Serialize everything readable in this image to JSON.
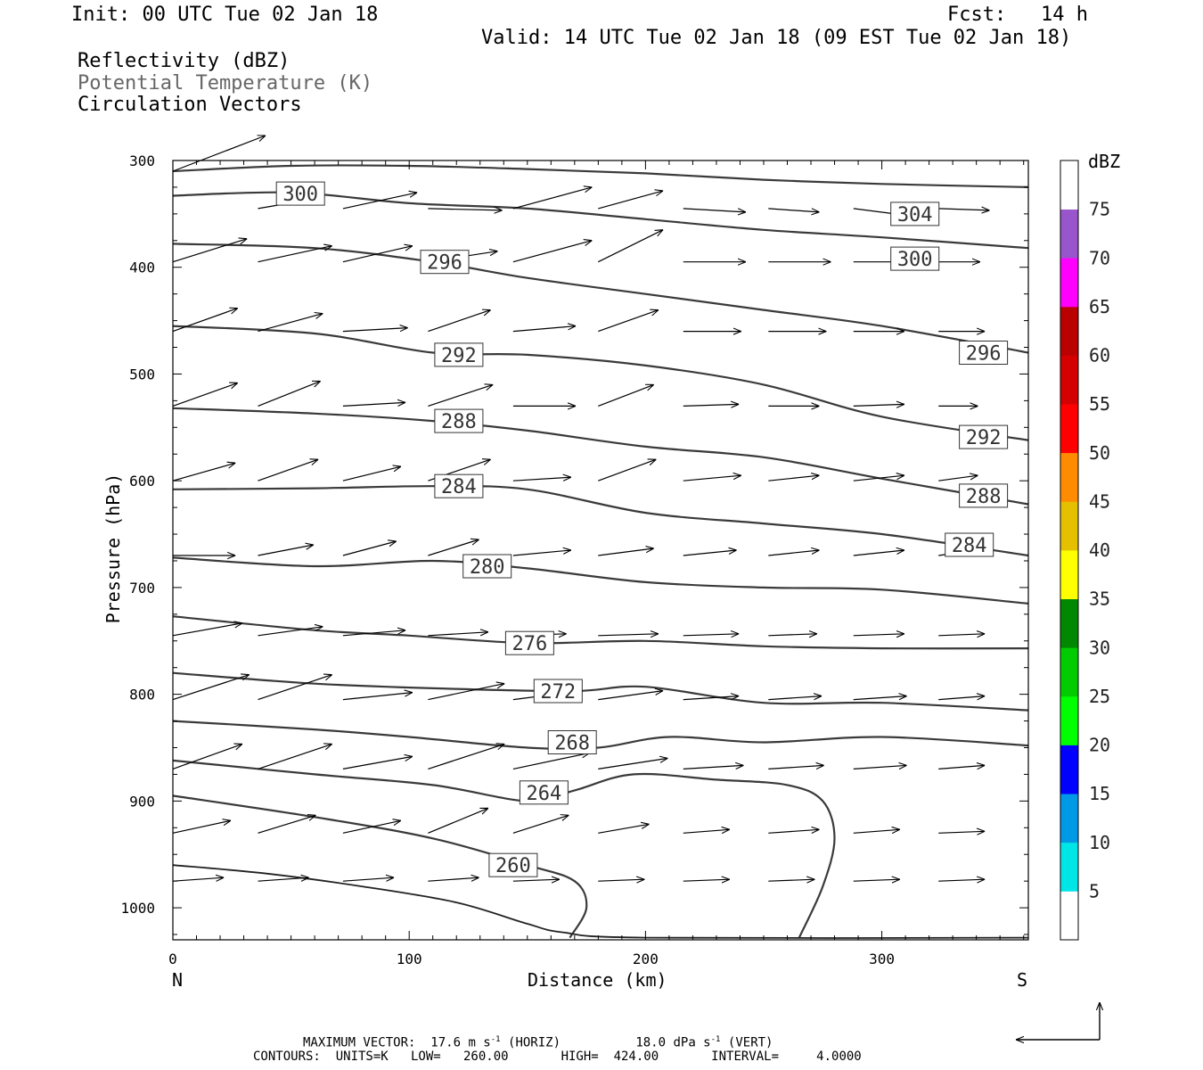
{
  "header": {
    "init": "Init: 00 UTC Tue 02 Jan 18",
    "fcst_label": "Fcst:",
    "fcst_value": "14 h",
    "valid": "Valid: 14 UTC Tue 02 Jan 18 (09 EST Tue 02 Jan 18)"
  },
  "fields": {
    "reflectivity": "Reflectivity (dBZ)",
    "theta": "Potential Temperature (K)",
    "vectors": "Circulation Vectors"
  },
  "footer": {
    "max_vector_label": "MAXIMUM VECTOR:",
    "horiz_value": "17.6 m s",
    "horiz_exp": "-1",
    "horiz_tag": "(HORIZ)",
    "vert_value": "18.0 dPa s",
    "vert_exp": "-1",
    "vert_tag": "(VERT)",
    "contours_line": "CONTOURS:  UNITS=K   LOW=   260.00       HIGH=  424.00       INTERVAL=     4.0000"
  },
  "chart_data": {
    "type": "contour-cross-section",
    "xlabel": "Distance (km)",
    "ylabel": "Pressure (hPa)",
    "x_left_label": "N",
    "x_right_label": "S",
    "xlim": [
      0,
      362
    ],
    "ylim": [
      1030,
      300
    ],
    "x_ticks": [
      0,
      100,
      200,
      300
    ],
    "y_ticks": [
      300,
      400,
      500,
      600,
      700,
      800,
      900,
      1000
    ],
    "colorbar": {
      "title": "dBZ",
      "levels": [
        5,
        10,
        15,
        20,
        25,
        30,
        35,
        40,
        45,
        50,
        55,
        60,
        65,
        70,
        75
      ],
      "colors": [
        "#ffffff",
        "#00e5e5",
        "#0099e5",
        "#0000ff",
        "#00ff00",
        "#00cc00",
        "#008800",
        "#ffff00",
        "#e5c000",
        "#ff8c00",
        "#ff0000",
        "#d40000",
        "#bb0000",
        "#ff00ff",
        "#9955cc",
        "#ffffff"
      ]
    },
    "isentropes": [
      {
        "value": 304,
        "points": [
          [
            0,
            310
          ],
          [
            50,
            305
          ],
          [
            100,
            305
          ],
          [
            150,
            308
          ],
          [
            200,
            312
          ],
          [
            250,
            318
          ],
          [
            300,
            322
          ],
          [
            362,
            325
          ]
        ],
        "labels": [
          [
            314,
            350
          ]
        ]
      },
      {
        "value": 300,
        "points": [
          [
            0,
            333
          ],
          [
            50,
            330
          ],
          [
            100,
            340
          ],
          [
            150,
            345
          ],
          [
            200,
            355
          ],
          [
            250,
            365
          ],
          [
            300,
            372
          ],
          [
            362,
            382
          ]
        ],
        "labels": [
          [
            54,
            331
          ],
          [
            314,
            392
          ]
        ]
      },
      {
        "value": 296,
        "points": [
          [
            0,
            378
          ],
          [
            60,
            382
          ],
          [
            110,
            395
          ],
          [
            150,
            410
          ],
          [
            200,
            425
          ],
          [
            250,
            440
          ],
          [
            300,
            455
          ],
          [
            362,
            480
          ]
        ],
        "labels": [
          [
            115,
            395
          ],
          [
            343,
            480
          ]
        ]
      },
      {
        "value": 292,
        "points": [
          [
            0,
            455
          ],
          [
            60,
            462
          ],
          [
            110,
            480
          ],
          [
            150,
            482
          ],
          [
            200,
            492
          ],
          [
            250,
            510
          ],
          [
            300,
            540
          ],
          [
            362,
            562
          ]
        ],
        "labels": [
          [
            121,
            482
          ],
          [
            343,
            559
          ]
        ]
      },
      {
        "value": 288,
        "points": [
          [
            0,
            532
          ],
          [
            60,
            537
          ],
          [
            110,
            544
          ],
          [
            150,
            553
          ],
          [
            200,
            568
          ],
          [
            250,
            578
          ],
          [
            300,
            598
          ],
          [
            362,
            622
          ]
        ],
        "labels": [
          [
            121,
            544
          ],
          [
            343,
            614
          ]
        ]
      },
      {
        "value": 284,
        "points": [
          [
            0,
            608
          ],
          [
            60,
            607
          ],
          [
            110,
            605
          ],
          [
            150,
            608
          ],
          [
            200,
            630
          ],
          [
            250,
            640
          ],
          [
            300,
            650
          ],
          [
            362,
            670
          ]
        ],
        "labels": [
          [
            121,
            605
          ],
          [
            337,
            660
          ]
        ]
      },
      {
        "value": 280,
        "points": [
          [
            0,
            672
          ],
          [
            60,
            680
          ],
          [
            110,
            675
          ],
          [
            150,
            682
          ],
          [
            200,
            695
          ],
          [
            250,
            700
          ],
          [
            300,
            702
          ],
          [
            362,
            715
          ]
        ],
        "labels": [
          [
            133,
            680
          ]
        ]
      },
      {
        "value": 276,
        "points": [
          [
            0,
            727
          ],
          [
            60,
            740
          ],
          [
            100,
            745
          ],
          [
            150,
            752
          ],
          [
            200,
            750
          ],
          [
            250,
            755
          ],
          [
            300,
            757
          ],
          [
            362,
            757
          ]
        ],
        "labels": [
          [
            151,
            752
          ]
        ]
      },
      {
        "value": 272,
        "points": [
          [
            0,
            780
          ],
          [
            60,
            790
          ],
          [
            120,
            795
          ],
          [
            170,
            797
          ],
          [
            200,
            793
          ],
          [
            250,
            808
          ],
          [
            300,
            808
          ],
          [
            362,
            815
          ]
        ],
        "labels": [
          [
            163,
            797
          ]
        ]
      },
      {
        "value": 268,
        "points": [
          [
            0,
            825
          ],
          [
            60,
            833
          ],
          [
            100,
            840
          ],
          [
            150,
            850
          ],
          [
            180,
            850
          ],
          [
            210,
            840
          ],
          [
            250,
            845
          ],
          [
            300,
            840
          ],
          [
            362,
            848
          ]
        ],
        "labels": [
          [
            169,
            845
          ]
        ]
      },
      {
        "value": 264,
        "points": [
          [
            0,
            862
          ],
          [
            60,
            875
          ],
          [
            110,
            885
          ],
          [
            150,
            900
          ],
          [
            170,
            890
          ],
          [
            195,
            875
          ],
          [
            230,
            880
          ],
          [
            260,
            885
          ],
          [
            275,
            900
          ],
          [
            280,
            935
          ],
          [
            275,
            980
          ],
          [
            265,
            1028
          ]
        ],
        "labels": [
          [
            157,
            892
          ]
        ]
      },
      {
        "value": 260,
        "points": [
          [
            0,
            895
          ],
          [
            60,
            915
          ],
          [
            110,
            935
          ],
          [
            150,
            960
          ],
          [
            170,
            975
          ],
          [
            175,
            1000
          ],
          [
            168,
            1028
          ]
        ],
        "labels": [
          [
            144,
            960
          ]
        ]
      }
    ],
    "surface": [
      [
        0,
        960
      ],
      [
        40,
        968
      ],
      [
        80,
        980
      ],
      [
        120,
        995
      ],
      [
        150,
        1015
      ],
      [
        165,
        1023
      ],
      [
        200,
        1028
      ],
      [
        362,
        1028
      ]
    ],
    "vector_rows": [
      {
        "p": 310,
        "vecs": [
          [
            0,
            40,
            -20
          ]
        ]
      },
      {
        "p": 345,
        "vecs": [
          [
            36,
            27,
            -6
          ],
          [
            72,
            32,
            -9
          ],
          [
            108,
            32,
            1
          ],
          [
            144,
            34,
            -12
          ],
          [
            180,
            28,
            -10
          ],
          [
            216,
            27,
            2
          ],
          [
            252,
            22,
            2
          ],
          [
            288,
            24,
            4
          ],
          [
            324,
            22,
            1
          ]
        ]
      },
      {
        "p": 395,
        "vecs": [
          [
            0,
            32,
            -13
          ],
          [
            36,
            32,
            -9
          ],
          [
            72,
            30,
            -9
          ],
          [
            108,
            30,
            -6
          ],
          [
            144,
            34,
            -12
          ],
          [
            180,
            28,
            -18
          ],
          [
            216,
            27,
            0
          ],
          [
            252,
            27,
            0
          ],
          [
            288,
            22,
            0
          ],
          [
            324,
            18,
            0
          ]
        ]
      },
      {
        "p": 460,
        "vecs": [
          [
            0,
            28,
            -13
          ],
          [
            36,
            28,
            -10
          ],
          [
            72,
            28,
            -2
          ],
          [
            108,
            27,
            -12
          ],
          [
            144,
            27,
            -3
          ],
          [
            180,
            26,
            -12
          ],
          [
            216,
            25,
            0
          ],
          [
            252,
            25,
            0
          ],
          [
            288,
            22,
            0
          ],
          [
            324,
            20,
            0
          ]
        ]
      },
      {
        "p": 530,
        "vecs": [
          [
            0,
            28,
            -13
          ],
          [
            36,
            27,
            -14
          ],
          [
            72,
            27,
            -2
          ],
          [
            108,
            28,
            -12
          ],
          [
            144,
            27,
            0
          ],
          [
            180,
            24,
            -12
          ],
          [
            216,
            24,
            -1
          ],
          [
            252,
            22,
            0
          ],
          [
            288,
            22,
            -1
          ],
          [
            324,
            17,
            0
          ]
        ]
      },
      {
        "p": 600,
        "vecs": [
          [
            0,
            27,
            -10
          ],
          [
            36,
            26,
            -12
          ],
          [
            72,
            25,
            -8
          ],
          [
            108,
            27,
            -12
          ],
          [
            144,
            25,
            -2
          ],
          [
            180,
            25,
            -12
          ],
          [
            216,
            25,
            -3
          ],
          [
            252,
            22,
            -3
          ],
          [
            288,
            22,
            -3
          ],
          [
            324,
            17,
            -3
          ]
        ]
      },
      {
        "p": 670,
        "vecs": [
          [
            0,
            27,
            0
          ],
          [
            36,
            24,
            -6
          ],
          [
            72,
            23,
            -8
          ],
          [
            108,
            22,
            -9
          ],
          [
            144,
            25,
            -3
          ],
          [
            180,
            24,
            -4
          ],
          [
            216,
            23,
            -3
          ],
          [
            252,
            22,
            -3
          ],
          [
            288,
            22,
            -3
          ],
          [
            324,
            22,
            -4
          ]
        ]
      },
      {
        "p": 745,
        "vecs": [
          [
            0,
            30,
            -7
          ],
          [
            36,
            28,
            -5
          ],
          [
            72,
            27,
            -3
          ],
          [
            108,
            26,
            -2
          ],
          [
            144,
            23,
            -1
          ],
          [
            180,
            26,
            -1
          ],
          [
            216,
            24,
            -1
          ],
          [
            252,
            21,
            -1
          ],
          [
            288,
            22,
            -1
          ],
          [
            324,
            20,
            -1
          ]
        ]
      },
      {
        "p": 805,
        "vecs": [
          [
            0,
            33,
            -14
          ],
          [
            36,
            32,
            -14
          ],
          [
            72,
            30,
            -4
          ],
          [
            108,
            33,
            -9
          ],
          [
            144,
            30,
            -5
          ],
          [
            180,
            28,
            -5
          ],
          [
            216,
            24,
            -2
          ],
          [
            252,
            23,
            -2
          ],
          [
            288,
            23,
            -2
          ],
          [
            324,
            20,
            -2
          ]
        ]
      },
      {
        "p": 870,
        "vecs": [
          [
            0,
            30,
            -14
          ],
          [
            36,
            32,
            -14
          ],
          [
            72,
            30,
            -7
          ],
          [
            108,
            33,
            -14
          ],
          [
            144,
            33,
            -9
          ],
          [
            180,
            30,
            -6
          ],
          [
            216,
            26,
            -2
          ],
          [
            252,
            24,
            -2
          ],
          [
            288,
            23,
            -2
          ],
          [
            324,
            20,
            -2
          ]
        ]
      },
      {
        "p": 930,
        "vecs": [
          [
            0,
            25,
            -7
          ],
          [
            36,
            25,
            -10
          ],
          [
            72,
            25,
            -7
          ],
          [
            108,
            26,
            -14
          ],
          [
            144,
            24,
            -10
          ],
          [
            180,
            22,
            -5
          ],
          [
            216,
            20,
            -2
          ],
          [
            252,
            22,
            -2
          ],
          [
            288,
            20,
            -2
          ],
          [
            324,
            20,
            -1
          ]
        ]
      },
      {
        "p": 975,
        "vecs": [
          [
            0,
            22,
            -2
          ],
          [
            36,
            22,
            -2
          ],
          [
            72,
            22,
            -2
          ],
          [
            108,
            22,
            -2
          ],
          [
            144,
            20,
            -1
          ],
          [
            180,
            20,
            -1
          ],
          [
            216,
            20,
            -1
          ],
          [
            252,
            20,
            -1
          ],
          [
            288,
            20,
            -1
          ],
          [
            324,
            20,
            -1
          ]
        ]
      }
    ]
  }
}
